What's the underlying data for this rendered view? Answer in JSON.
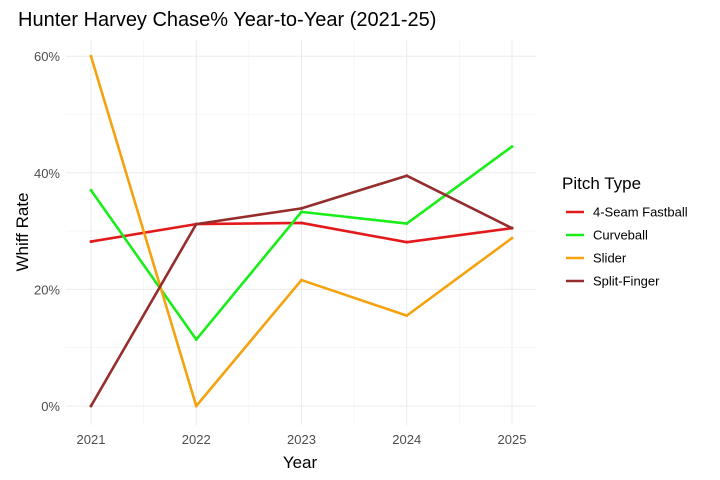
{
  "chart_data": {
    "type": "line",
    "title": "Hunter Harvey Chase% Year-to-Year (2021-25)",
    "xlabel": "Year",
    "ylabel": "Whiff Rate",
    "x": [
      2021,
      2022,
      2023,
      2024,
      2025
    ],
    "x_tick_labels": [
      "2021",
      "2022",
      "2023",
      "2024",
      "2025"
    ],
    "y_ticks": [
      0,
      20,
      40,
      60
    ],
    "y_tick_labels": [
      "0%",
      "20%",
      "40%",
      "60%"
    ],
    "ylim": [
      -3,
      64
    ],
    "xlim": [
      2020.8,
      2025.2
    ],
    "grid": true,
    "legend": {
      "title": "Pitch Type",
      "position": "right"
    },
    "series": [
      {
        "name": "4-Seam Fastball",
        "color": "#e31a1c",
        "values": [
          28.2,
          31.2,
          31.4,
          28.1,
          30.5
        ]
      },
      {
        "name": "Curveball",
        "color": "#1aee1a",
        "values": [
          37.0,
          11.4,
          33.3,
          31.3,
          44.5
        ]
      },
      {
        "name": "Slider",
        "color": "#f4a30e",
        "values": [
          60.0,
          0.0,
          21.6,
          15.5,
          28.8
        ]
      },
      {
        "name": "Split-Finger",
        "color": "#962d2d",
        "values": [
          0.0,
          31.2,
          33.9,
          39.5,
          30.5
        ]
      }
    ]
  }
}
